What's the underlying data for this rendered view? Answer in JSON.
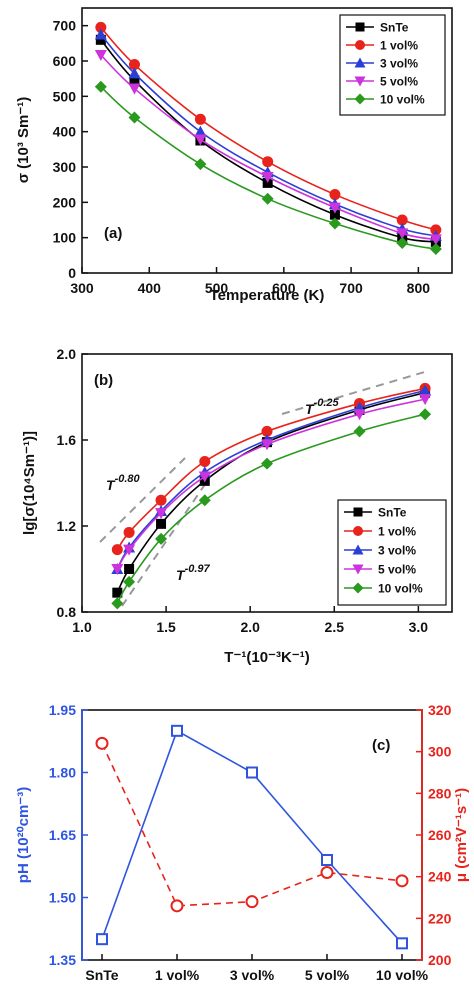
{
  "chart_data": [
    {
      "type": "line",
      "panel_label": "(a)",
      "xlabel": "Temperature (K)",
      "ylabel": "σ (10³ Sm⁻¹)",
      "xlim": [
        300,
        850
      ],
      "ylim": [
        0,
        750
      ],
      "x_ticks": [
        300,
        400,
        500,
        600,
        700,
        800
      ],
      "y_ticks": [
        0,
        100,
        200,
        300,
        400,
        500,
        600,
        700
      ],
      "x": [
        328,
        378,
        476,
        576,
        676,
        776,
        826
      ],
      "series": [
        {
          "name": "SnTe",
          "color": "#000000",
          "marker": "square",
          "values": [
            660,
            545,
            375,
            255,
            165,
            100,
            88
          ]
        },
        {
          "name": "1 vol%",
          "color": "#e8231b",
          "marker": "circle",
          "values": [
            695,
            590,
            435,
            315,
            222,
            150,
            122
          ]
        },
        {
          "name": "3 vol%",
          "color": "#2b3fd6",
          "marker": "triangle-up",
          "values": [
            675,
            565,
            400,
            285,
            195,
            125,
            105
          ]
        },
        {
          "name": "5 vol%",
          "color": "#cc33dd",
          "marker": "triangle-down",
          "values": [
            617,
            522,
            378,
            272,
            185,
            112,
            95
          ]
        },
        {
          "name": "10 vol%",
          "color": "#2a9a1f",
          "marker": "diamond",
          "values": [
            527,
            440,
            308,
            210,
            140,
            85,
            68
          ]
        }
      ],
      "grid": false,
      "legend_position": "top-right"
    },
    {
      "type": "line",
      "panel_label": "(b)",
      "xlabel": "T⁻¹(10⁻³K⁻¹)",
      "ylabel": "lg[σ(10⁴Sm⁻¹)]",
      "xlim": [
        1.0,
        3.2
      ],
      "ylim": [
        0.8,
        2.0
      ],
      "x_ticks": [
        1.0,
        1.5,
        2.0,
        2.5,
        3.0
      ],
      "y_ticks": [
        0.8,
        1.2,
        1.6,
        2.0
      ],
      "x": [
        1.21,
        1.28,
        1.47,
        1.73,
        2.1,
        2.65,
        3.04
      ],
      "series": [
        {
          "name": "SnTe",
          "color": "#000000",
          "marker": "square",
          "values": [
            0.89,
            1.0,
            1.21,
            1.41,
            1.59,
            1.74,
            1.82
          ]
        },
        {
          "name": "1 vol%",
          "color": "#e8231b",
          "marker": "circle",
          "values": [
            1.09,
            1.17,
            1.32,
            1.5,
            1.64,
            1.77,
            1.84
          ]
        },
        {
          "name": "3 vol%",
          "color": "#2b3fd6",
          "marker": "triangle-up",
          "values": [
            1.0,
            1.1,
            1.27,
            1.45,
            1.6,
            1.75,
            1.83
          ]
        },
        {
          "name": "5 vol%",
          "color": "#cc33dd",
          "marker": "triangle-down",
          "values": [
            1.0,
            1.09,
            1.26,
            1.43,
            1.58,
            1.72,
            1.79
          ]
        },
        {
          "name": "10 vol%",
          "color": "#2a9a1f",
          "marker": "diamond",
          "values": [
            0.84,
            0.94,
            1.14,
            1.32,
            1.49,
            1.64,
            1.72
          ]
        }
      ],
      "annotations": [
        {
          "text": "T",
          "power": "-0.25"
        },
        {
          "text": "T",
          "power": "-0.80"
        },
        {
          "text": "T",
          "power": "-0.97"
        }
      ],
      "grid": false,
      "legend_position": "bottom-right"
    },
    {
      "type": "line",
      "panel_label": "(c)",
      "categories": [
        "SnTe",
        "1 vol%",
        "3 vol%",
        "5 vol%",
        "10 vol%"
      ],
      "ylabel_left": "pH (10²⁰cm⁻³)",
      "ylabel_right": "μ (cm²V⁻¹s⁻¹)",
      "ylim_left": [
        1.35,
        1.95
      ],
      "ylim_right": [
        200,
        320
      ],
      "y_ticks_left": [
        "1.35",
        "1.50",
        "1.65",
        "1.80",
        "1.95"
      ],
      "y_ticks_right": [
        "200",
        "220",
        "240",
        "260",
        "280",
        "300",
        "320"
      ],
      "series": [
        {
          "axis": "left",
          "color": "#2f55e0",
          "marker": "open-square",
          "line": "solid",
          "values": [
            1.4,
            1.9,
            1.8,
            1.59,
            1.39
          ]
        },
        {
          "axis": "right",
          "color": "#e8231b",
          "marker": "open-circle",
          "line": "dashed",
          "values": [
            304,
            226,
            228,
            242,
            238
          ]
        }
      ],
      "grid": false
    }
  ]
}
